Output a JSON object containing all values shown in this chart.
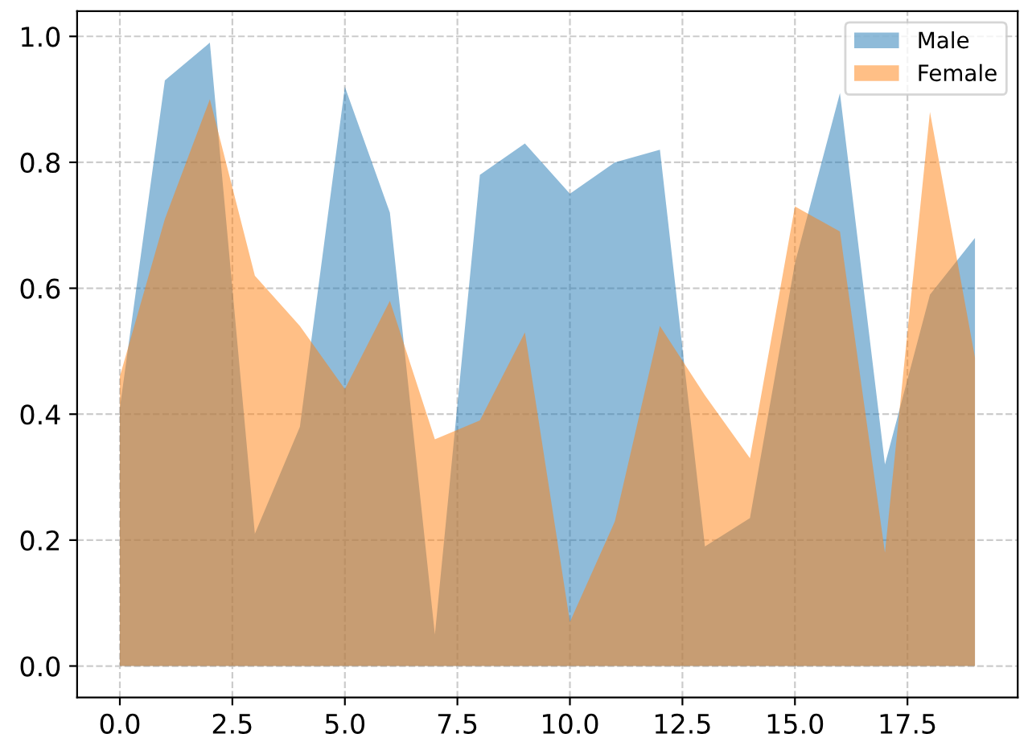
{
  "chart_data": {
    "type": "area",
    "x": [
      0,
      1,
      2,
      3,
      4,
      5,
      6,
      7,
      8,
      9,
      10,
      11,
      12,
      13,
      14,
      15,
      16,
      17,
      18,
      19
    ],
    "series": [
      {
        "name": "Male",
        "color": "#1f77b4",
        "values": [
          0.41,
          0.93,
          0.99,
          0.21,
          0.38,
          0.92,
          0.72,
          0.05,
          0.78,
          0.83,
          0.75,
          0.8,
          0.82,
          0.19,
          0.235,
          0.64,
          0.91,
          0.32,
          0.59,
          0.68
        ]
      },
      {
        "name": "Female",
        "color": "#ff7f0e",
        "values": [
          0.46,
          0.71,
          0.9,
          0.62,
          0.54,
          0.44,
          0.58,
          0.36,
          0.39,
          0.53,
          0.07,
          0.23,
          0.54,
          0.43,
          0.33,
          0.73,
          0.69,
          0.18,
          0.88,
          0.49
        ]
      }
    ],
    "xlim": [
      -0.95,
      19.95
    ],
    "ylim": [
      -0.05,
      1.04
    ],
    "xticks": [
      {
        "value": 0,
        "label": "0.0"
      },
      {
        "value": 2.5,
        "label": "2.5"
      },
      {
        "value": 5,
        "label": "5.0"
      },
      {
        "value": 7.5,
        "label": "7.5"
      },
      {
        "value": 10,
        "label": "10.0"
      },
      {
        "value": 12.5,
        "label": "12.5"
      },
      {
        "value": 15,
        "label": "15.0"
      },
      {
        "value": 17.5,
        "label": "17.5"
      }
    ],
    "yticks": [
      {
        "value": 0,
        "label": "0.0"
      },
      {
        "value": 0.2,
        "label": "0.2"
      },
      {
        "value": 0.4,
        "label": "0.4"
      },
      {
        "value": 0.6,
        "label": "0.6"
      },
      {
        "value": 0.8,
        "label": "0.8"
      },
      {
        "value": 1,
        "label": "1.0"
      }
    ],
    "grid": true,
    "legend": "top right",
    "line_style": "dashed"
  }
}
